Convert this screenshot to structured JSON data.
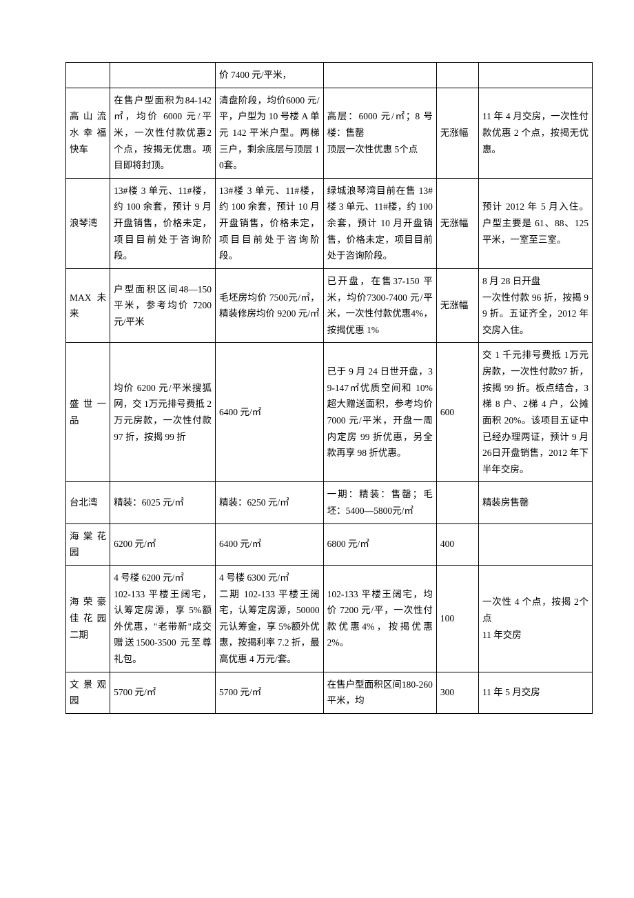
{
  "table": {
    "columns": [
      "c1",
      "c2",
      "c3",
      "c4",
      "c5",
      "c6"
    ],
    "rows": [
      {
        "c1": "",
        "c2": "",
        "c3": "价 7400 元/平米，",
        "c4": "",
        "c5": "",
        "c6": ""
      },
      {
        "c1": "高 山 流水 幸 福快车",
        "c2": "在售户型面积为84-142㎡，均价 6000 元/平米，一次性付款优惠2 个点，按揭无优惠。项目即将封顶。",
        "c3": "清盘阶段，均价6000 元/平，户型为 10 号楼 A 单元 142 平米户型。两梯三户，剩余底层与顶层 10套。",
        "c4": "高层：6000 元/㎡；8 号楼：售罄\n顶层一次性优惠 5个点",
        "c5": "无涨幅",
        "c6": "11 年 4 月交房，一次性付款优惠 2 个点，按揭无优惠。"
      },
      {
        "c1": "浪琴湾",
        "c2": "13#楼 3 单元、11#楼，约 100 余套，预计 9 月开盘销售，价格未定，项目目前处于咨询阶段。",
        "c3": "13#楼 3 单元、11#楼，约 100 余套，预计 10 月开盘销售，价格未定，项目目前处于咨询阶段。",
        "c4": "绿城浪琴湾目前在售 13#楼 3 单元、11#楼，约 100 余套，预计 10 月开盘销售，价格未定，项目目前处于咨询阶段。",
        "c5": "无涨幅",
        "c6": "预计 2012 年 5 月入住。户型主要是 61、88、125平米，一室至三室。"
      },
      {
        "c1": "MAX 未来",
        "c2": "户型面积区间48—150 平米，参考均价 7200元/平米",
        "c3": "毛坯房均价 7500元/㎡，精装修房均价 9200 元/㎡",
        "c4": "已开盘，在售37-150 平米，均价7300-7400 元/平米，一次性付款优惠4%，按揭优惠 1%",
        "c5": "无涨幅",
        "c6": "8 月 28 日开盘\n一次性付款 96 折，按揭 99 折。五证齐全，2012 年交房入住。"
      },
      {
        "c1": "盛 世 一品",
        "c2": "均价 6200 元/平米搜狐网，交 1万元排号费抵 2万元房款，一次性付款 97 折，按揭 99 折",
        "c3": "6400 元/㎡",
        "c4": "已于 9 月 24 日世开盘，39-147㎡优质空间和 10%超大赠送面积，参考均价 7000 元/平米，开盘一周内定房 99 折优惠，另全款再享 98 折优惠。",
        "c5": "600",
        "c6": "交 1 千元排号费抵 1万元房款，一次性付款97 折，按揭 99 折。板点结合，3 梯 8 户、2梯 4 户，公摊面积 20%。该项目五证中已经办理两证，预计 9 月 26日开盘销售，2012 年下半年交房。"
      },
      {
        "c1": "台北湾",
        "c2": "精装：6025 元/㎡",
        "c3": "精装：6250 元/㎡",
        "c4": "一期：精装：售罄；毛坯：5400—5800元/㎡",
        "c5": "",
        "c6": "精装房售罄"
      },
      {
        "c1": "海 棠 花园",
        "c2": "6200 元/㎡",
        "c3": "6400 元/㎡",
        "c4": "6800 元/㎡",
        "c5": "400",
        "c6": ""
      },
      {
        "c1": "海 荣 豪佳 花 园二期",
        "c2": "4 号楼 6200 元/㎡\n102-133 平楼王阔宅，认筹定房源，享 5%额外优惠，\"老带新\"成交赠送1500-3500 元至尊礼包。",
        "c3": "4 号楼 6300 元/㎡\n二期 102-133 平楼王阔宅，认筹定房源，50000 元认筹金，享 5%额外优惠，按揭利率 7.2 折，最高优惠 4 万元/套。",
        "c4": "102-133 平楼王阔宅，均价 7200 元/平，一次性付款优惠4%，按揭优惠 2%。",
        "c5": "100",
        "c6": "一次性 4 个点，按揭 2个点\n11 年交房"
      },
      {
        "c1": "文 景 观园",
        "c2": "5700 元/㎡",
        "c3": "5700 元/㎡",
        "c4": "在售户型面积区间180-260 平米，均",
        "c5": "300",
        "c6": "11 年 5 月交房"
      }
    ]
  }
}
